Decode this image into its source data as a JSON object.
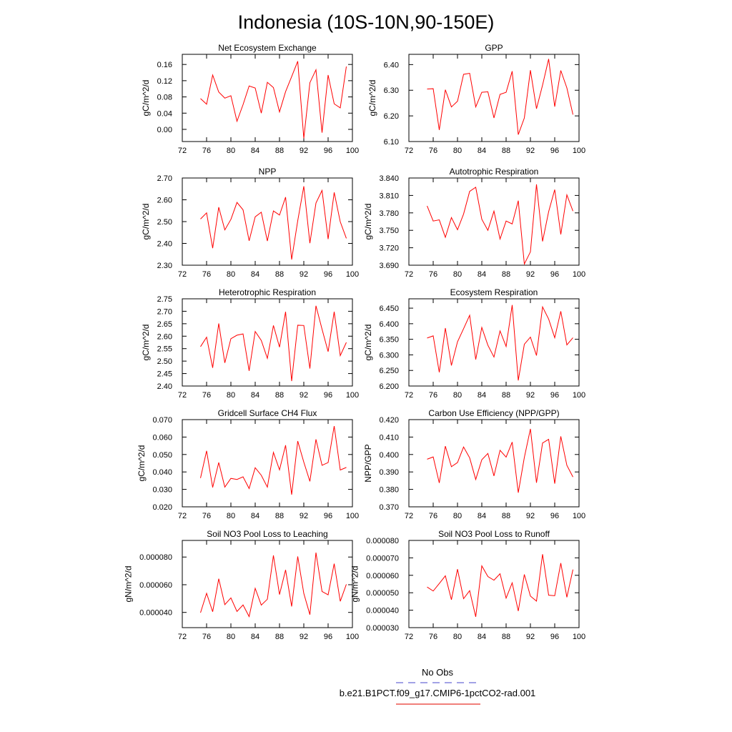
{
  "figure": {
    "title": "Indonesia (10S-10N,90-150E)"
  },
  "legend": {
    "items": [
      {
        "label": "No Obs",
        "color": "#6b6bd6",
        "style": "dashed"
      },
      {
        "label": "b.e21.B1PCT.f09_g17.CMIP6-1pctCO2-rad.001",
        "color": "#e8332a",
        "style": "solid"
      }
    ]
  },
  "colors": {
    "series": "#ff0000"
  },
  "chart_data": [
    {
      "type": "line",
      "title": "Net Ecosystem Exchange",
      "ylabel": "gC/m^2/d",
      "xlim": [
        72,
        100
      ],
      "xticks": [
        72,
        76,
        80,
        84,
        88,
        92,
        96,
        100
      ],
      "ylim": [
        -0.03,
        0.185
      ],
      "yticks": [
        0.0,
        0.04,
        0.08,
        0.12,
        0.16
      ],
      "ydecimals": 2,
      "x": [
        75,
        76,
        77,
        78,
        79,
        80,
        81,
        82,
        83,
        84,
        85,
        86,
        87,
        88,
        89,
        90,
        91,
        92,
        93,
        94,
        95,
        96,
        97,
        98,
        99
      ],
      "series": [
        {
          "values": [
            0.076,
            0.062,
            0.134,
            0.092,
            0.077,
            0.083,
            0.02,
            0.061,
            0.107,
            0.102,
            0.04,
            0.116,
            0.103,
            0.043,
            0.093,
            0.13,
            0.168,
            -0.022,
            0.115,
            0.147,
            -0.008,
            0.134,
            0.063,
            0.053,
            0.155
          ]
        }
      ]
    },
    {
      "type": "line",
      "title": "GPP",
      "ylabel": "gC/m^2/d",
      "xlim": [
        72,
        100
      ],
      "xticks": [
        72,
        76,
        80,
        84,
        88,
        92,
        96,
        100
      ],
      "ylim": [
        6.1,
        6.44
      ],
      "yticks": [
        6.1,
        6.2,
        6.3,
        6.4
      ],
      "ydecimals": 2,
      "x": [
        75,
        76,
        77,
        78,
        79,
        80,
        81,
        82,
        83,
        84,
        85,
        86,
        87,
        88,
        89,
        90,
        91,
        92,
        93,
        94,
        95,
        96,
        97,
        98,
        99
      ],
      "series": [
        {
          "values": [
            6.305,
            6.306,
            6.145,
            6.302,
            6.235,
            6.257,
            6.362,
            6.366,
            6.235,
            6.292,
            6.294,
            6.192,
            6.284,
            6.292,
            6.374,
            6.127,
            6.192,
            6.378,
            6.228,
            6.32,
            6.422,
            6.236,
            6.377,
            6.309,
            6.205
          ]
        }
      ]
    },
    {
      "type": "line",
      "title": "NPP",
      "ylabel": "gC/m^2/d",
      "xlim": [
        72,
        100
      ],
      "xticks": [
        72,
        76,
        80,
        84,
        88,
        92,
        96,
        100
      ],
      "ylim": [
        2.3,
        2.7
      ],
      "yticks": [
        2.3,
        2.4,
        2.5,
        2.6,
        2.7
      ],
      "ydecimals": 2,
      "x": [
        75,
        76,
        77,
        78,
        79,
        80,
        81,
        82,
        83,
        84,
        85,
        86,
        87,
        88,
        89,
        90,
        91,
        92,
        93,
        94,
        95,
        96,
        97,
        98,
        99
      ],
      "series": [
        {
          "values": [
            2.512,
            2.54,
            2.378,
            2.566,
            2.462,
            2.51,
            2.588,
            2.554,
            2.412,
            2.522,
            2.543,
            2.411,
            2.549,
            2.53,
            2.612,
            2.326,
            2.504,
            2.662,
            2.401,
            2.585,
            2.643,
            2.42,
            2.634,
            2.499,
            2.423
          ]
        }
      ]
    },
    {
      "type": "line",
      "title": "Autotrophic Respiration",
      "ylabel": "gC/m^2/d",
      "xlim": [
        72,
        100
      ],
      "xticks": [
        72,
        76,
        80,
        84,
        88,
        92,
        96,
        100
      ],
      "ylim": [
        3.69,
        3.84
      ],
      "yticks": [
        3.69,
        3.72,
        3.75,
        3.78,
        3.81,
        3.84
      ],
      "ydecimals": 3,
      "x": [
        75,
        76,
        77,
        78,
        79,
        80,
        81,
        82,
        83,
        84,
        85,
        86,
        87,
        88,
        89,
        90,
        91,
        92,
        93,
        94,
        95,
        96,
        97,
        98,
        99
      ],
      "series": [
        {
          "values": [
            3.792,
            3.766,
            3.768,
            3.738,
            3.772,
            3.751,
            3.778,
            3.817,
            3.824,
            3.769,
            3.75,
            3.783,
            3.735,
            3.766,
            3.761,
            3.801,
            3.692,
            3.713,
            3.829,
            3.731,
            3.782,
            3.82,
            3.743,
            3.811,
            3.783
          ]
        }
      ]
    },
    {
      "type": "line",
      "title": "Heterotrophic Respiration",
      "ylabel": "gC/m^2/d",
      "xlim": [
        72,
        100
      ],
      "xticks": [
        72,
        76,
        80,
        84,
        88,
        92,
        96,
        100
      ],
      "ylim": [
        2.4,
        2.75
      ],
      "yticks": [
        2.4,
        2.45,
        2.5,
        2.55,
        2.6,
        2.65,
        2.7,
        2.75
      ],
      "ydecimals": 2,
      "x": [
        75,
        76,
        77,
        78,
        79,
        80,
        81,
        82,
        83,
        84,
        85,
        86,
        87,
        88,
        89,
        90,
        91,
        92,
        93,
        94,
        95,
        96,
        97,
        98,
        99
      ],
      "series": [
        {
          "values": [
            2.558,
            2.596,
            2.473,
            2.651,
            2.493,
            2.59,
            2.604,
            2.609,
            2.461,
            2.619,
            2.583,
            2.511,
            2.643,
            2.556,
            2.698,
            2.42,
            2.644,
            2.643,
            2.47,
            2.722,
            2.628,
            2.538,
            2.698,
            2.522,
            2.575
          ]
        }
      ]
    },
    {
      "type": "line",
      "title": "Ecosystem Respiration",
      "ylabel": "gC/m^2/d",
      "xlim": [
        72,
        100
      ],
      "xticks": [
        72,
        76,
        80,
        84,
        88,
        92,
        96,
        100
      ],
      "ylim": [
        6.2,
        6.48
      ],
      "yticks": [
        6.2,
        6.25,
        6.3,
        6.35,
        6.4,
        6.45
      ],
      "ydecimals": 3,
      "x": [
        75,
        76,
        77,
        78,
        79,
        80,
        81,
        82,
        83,
        84,
        85,
        86,
        87,
        88,
        89,
        90,
        91,
        92,
        93,
        94,
        95,
        96,
        97,
        98,
        99
      ],
      "series": [
        {
          "values": [
            6.354,
            6.361,
            6.244,
            6.386,
            6.266,
            6.342,
            6.384,
            6.427,
            6.285,
            6.388,
            6.331,
            6.293,
            6.377,
            6.327,
            6.46,
            6.218,
            6.334,
            6.357,
            6.298,
            6.454,
            6.415,
            6.355,
            6.44,
            6.332,
            6.355
          ]
        }
      ]
    },
    {
      "type": "line",
      "title": "Gridcell Surface CH4 Flux",
      "ylabel": "gC/m^2/d",
      "xlim": [
        72,
        100
      ],
      "xticks": [
        72,
        76,
        80,
        84,
        88,
        92,
        96,
        100
      ],
      "ylim": [
        0.02,
        0.07
      ],
      "yticks": [
        0.02,
        0.03,
        0.04,
        0.05,
        0.06,
        0.07
      ],
      "ydecimals": 3,
      "x": [
        75,
        76,
        77,
        78,
        79,
        80,
        81,
        82,
        83,
        84,
        85,
        86,
        87,
        88,
        89,
        90,
        91,
        92,
        93,
        94,
        95,
        96,
        97,
        98,
        99
      ],
      "series": [
        {
          "values": [
            0.0365,
            0.0521,
            0.0311,
            0.0454,
            0.0313,
            0.0363,
            0.0357,
            0.0372,
            0.0305,
            0.0424,
            0.0381,
            0.0313,
            0.0512,
            0.0412,
            0.0553,
            0.027,
            0.0577,
            0.0456,
            0.0346,
            0.0587,
            0.0438,
            0.0454,
            0.0663,
            0.0411,
            0.0426
          ]
        }
      ]
    },
    {
      "type": "line",
      "title": "Carbon Use Efficiency (NPP/GPP)",
      "ylabel": "NPP/GPP",
      "xlim": [
        72,
        100
      ],
      "xticks": [
        72,
        76,
        80,
        84,
        88,
        92,
        96,
        100
      ],
      "ylim": [
        0.37,
        0.42
      ],
      "yticks": [
        0.37,
        0.38,
        0.39,
        0.4,
        0.41,
        0.42
      ],
      "ydecimals": 3,
      "x": [
        75,
        76,
        77,
        78,
        79,
        80,
        81,
        82,
        83,
        84,
        85,
        86,
        87,
        88,
        89,
        90,
        91,
        92,
        93,
        94,
        95,
        96,
        97,
        98,
        99
      ],
      "series": [
        {
          "values": [
            0.3973,
            0.3986,
            0.3837,
            0.4048,
            0.393,
            0.3954,
            0.4043,
            0.3981,
            0.3857,
            0.397,
            0.4006,
            0.3877,
            0.4024,
            0.3985,
            0.4071,
            0.3781,
            0.3983,
            0.4147,
            0.3838,
            0.4066,
            0.4087,
            0.3833,
            0.4104,
            0.3938,
            0.3871
          ]
        }
      ]
    },
    {
      "type": "line",
      "title": "Soil NO3 Pool Loss to Leaching",
      "ylabel": "gN/m^2/d",
      "xlim": [
        72,
        100
      ],
      "xticks": [
        72,
        76,
        80,
        84,
        88,
        92,
        96,
        100
      ],
      "ylim": [
        2.9e-05,
        9.2e-05
      ],
      "yticks": [
        4e-05,
        6e-05,
        8e-05
      ],
      "ydecimals": 6,
      "x": [
        75,
        76,
        77,
        78,
        79,
        80,
        81,
        82,
        83,
        84,
        85,
        86,
        87,
        88,
        89,
        90,
        91,
        92,
        93,
        94,
        95,
        96,
        97,
        98,
        99
      ],
      "series": [
        {
          "values": [
            3.98e-05,
            5.38e-05,
            4.05e-05,
            6.43e-05,
            4.56e-05,
            5.05e-05,
            4.07e-05,
            4.54e-05,
            3.7e-05,
            5.74e-05,
            4.53e-05,
            4.95e-05,
            8.12e-05,
            5.29e-05,
            7.07e-05,
            4.43e-05,
            8.04e-05,
            5.37e-05,
            3.84e-05,
            8.32e-05,
            5.51e-05,
            5.27e-05,
            7.52e-05,
            4.8e-05,
            6.03e-05
          ]
        }
      ]
    },
    {
      "type": "line",
      "title": "Soil NO3 Pool Loss to Runoff",
      "ylabel": "gN/m^2/d",
      "xlim": [
        72,
        100
      ],
      "xticks": [
        72,
        76,
        80,
        84,
        88,
        92,
        96,
        100
      ],
      "ylim": [
        3e-05,
        8e-05
      ],
      "yticks": [
        3e-05,
        4e-05,
        5e-05,
        6e-05,
        7e-05,
        8e-05
      ],
      "ydecimals": 6,
      "x": [
        75,
        76,
        77,
        78,
        79,
        80,
        81,
        82,
        83,
        84,
        85,
        86,
        87,
        88,
        89,
        90,
        91,
        92,
        93,
        94,
        95,
        96,
        97,
        98,
        99
      ],
      "series": [
        {
          "values": [
            5.33e-05,
            5.1e-05,
            5.53e-05,
            5.97e-05,
            4.6e-05,
            6.35e-05,
            4.66e-05,
            5.12e-05,
            3.62e-05,
            6.54e-05,
            5.93e-05,
            5.72e-05,
            6.09e-05,
            4.69e-05,
            5.57e-05,
            3.95e-05,
            6.05e-05,
            4.81e-05,
            4.52e-05,
            7.21e-05,
            4.86e-05,
            4.83e-05,
            6.7e-05,
            4.74e-05,
            6.33e-05
          ]
        }
      ]
    }
  ]
}
